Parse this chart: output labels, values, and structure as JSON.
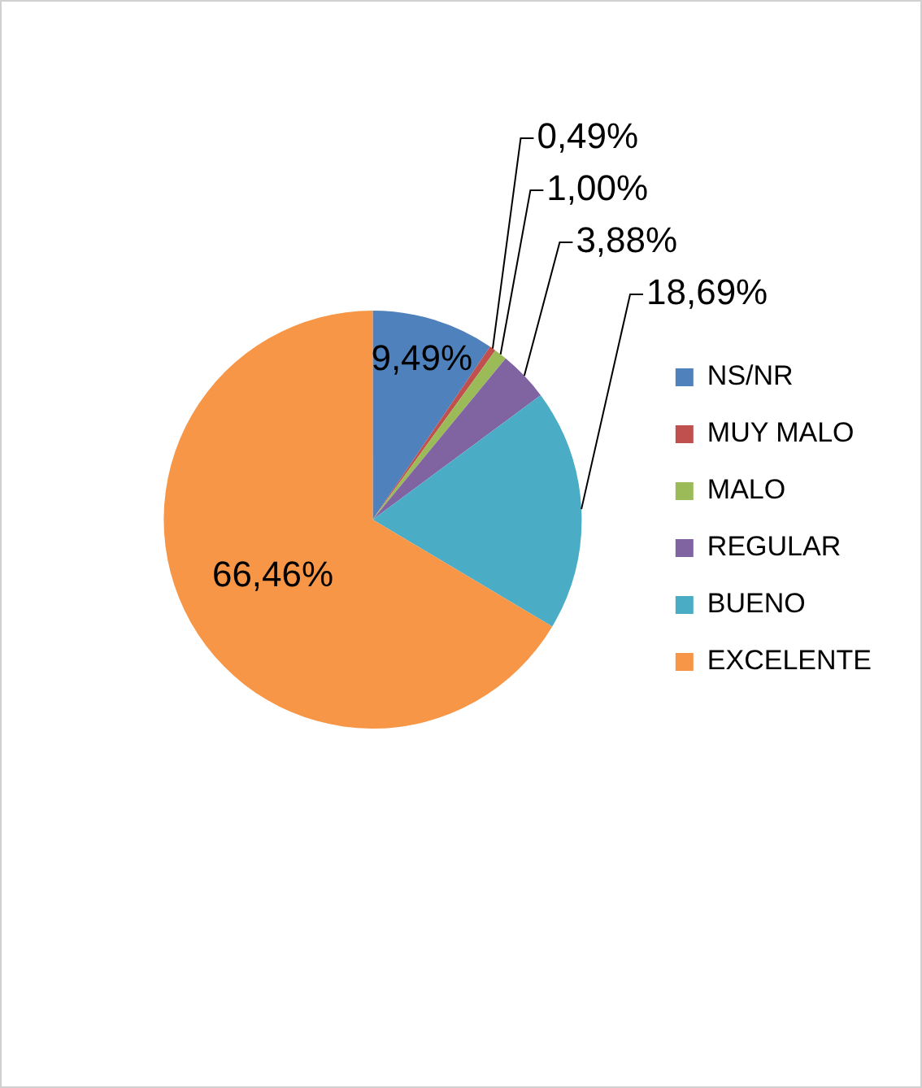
{
  "chart_data": {
    "type": "pie",
    "categories": [
      "NS/NR",
      "MUY MALO",
      "MALO",
      "REGULAR",
      "BUENO",
      "EXCELENTE"
    ],
    "values": [
      9.49,
      0.49,
      1.0,
      3.88,
      18.69,
      66.46
    ],
    "value_labels": [
      "9,49%",
      "0,49%",
      "1,00%",
      "3,88%",
      "18,69%",
      "66,46%"
    ],
    "colors": [
      "#4f81bd",
      "#c0504d",
      "#9bbb59",
      "#8064a2",
      "#4bacc6",
      "#f79646"
    ],
    "legend": "right"
  }
}
